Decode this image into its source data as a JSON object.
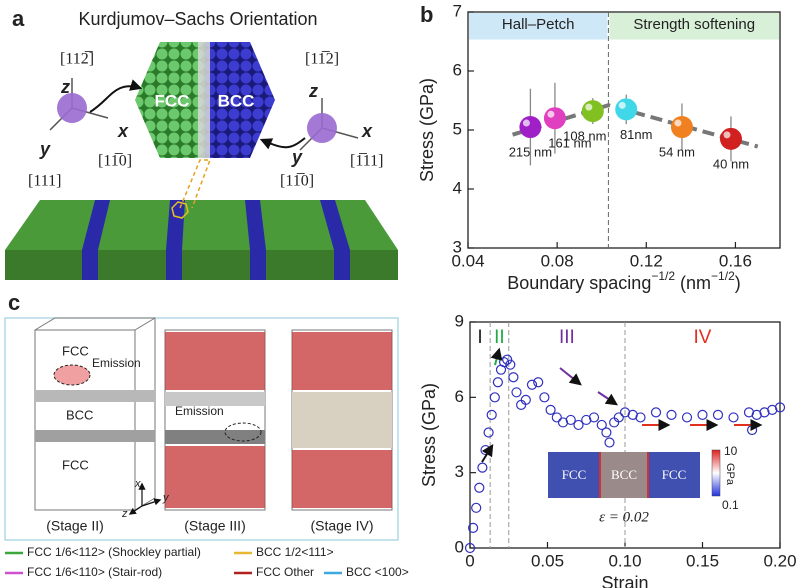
{
  "panel_labels": [
    "a",
    "b",
    "c"
  ],
  "panel_a": {
    "title": "Kurdjumov–Sachs Orientation",
    "phases": [
      "FCC",
      "BCC"
    ],
    "left_axes": {
      "z": "z",
      "x": "x",
      "y": "y",
      "z_dir": "[112̅]",
      "x_dir": "[11̅0]",
      "y_dir": "[111]"
    },
    "right_axes": {
      "z": "z",
      "x": "x",
      "y": "y",
      "z_dir": "[11̅2]",
      "x_dir": "[1̅11]",
      "y_dir": "[11̅0]"
    }
  },
  "panel_c_left": {
    "box_labels": [
      "FCC",
      "BCC",
      "FCC"
    ],
    "emission": [
      "Emission",
      "Emission"
    ],
    "triad": [
      "x",
      "y",
      "z"
    ],
    "stages": [
      "(Stage II)",
      "(Stage III)",
      "(Stage IV)"
    ],
    "legend": [
      {
        "label": "FCC 1/6<112> (Shockley partial)",
        "color": "#3aa83a"
      },
      {
        "label": "BCC 1/2<111>",
        "color": "#e8b830"
      },
      {
        "label": "FCC 1/6<110> (Stair-rod)",
        "color": "#d050d0"
      },
      {
        "label": "FCC Other",
        "color": "#b02020"
      },
      {
        "label": "BCC <100>",
        "color": "#40a8e0"
      }
    ]
  },
  "chart_data": [
    {
      "type": "scatter",
      "ylabel": "Stress (GPa)",
      "xlabel": [
        "Boundary spacing",
        "−1/2",
        " (nm",
        "−1/2",
        ")"
      ],
      "x": [
        0.068,
        0.079,
        0.096,
        0.111,
        0.136,
        0.158
      ],
      "values": [
        5.05,
        5.2,
        5.32,
        5.35,
        5.05,
        4.85
      ],
      "errors": [
        0.65,
        0.6,
        0.22,
        0.25,
        0.4,
        0.38
      ],
      "point_labels": [
        "215 nm",
        "161 nm",
        "108 nm",
        "81nm",
        "54 nm",
        "40 nm"
      ],
      "colors": [
        "#a020c8",
        "#e040c0",
        "#80c020",
        "#40d8e8",
        "#f08020",
        "#d02020"
      ],
      "trend": {
        "x": [
          0.06,
          0.103,
          0.17
        ],
        "values": [
          4.92,
          5.42,
          4.72
        ]
      },
      "regions": [
        {
          "label": "Hall–Petch",
          "x": [
            0.04,
            0.103
          ],
          "y": [
            6.55,
            7
          ],
          "color": "#cfe8f8"
        },
        {
          "label": "Strength softening",
          "x": [
            0.103,
            0.18
          ],
          "y": [
            6.55,
            7
          ],
          "color": "#d8f0d8"
        }
      ],
      "divider": 0.103,
      "xlim": [
        0.04,
        0.18
      ],
      "xticks": [
        0.04,
        0.08,
        0.12,
        0.16
      ],
      "ylim": [
        3,
        7
      ],
      "yticks": [
        3,
        4,
        5,
        6,
        7
      ]
    },
    {
      "type": "line",
      "ylabel": "Stress (GPa)",
      "xlabel": [
        "Strain"
      ],
      "color": "#3030c0",
      "x": [
        0,
        0.002,
        0.004,
        0.006,
        0.008,
        0.01,
        0.012,
        0.014,
        0.016,
        0.018,
        0.02,
        0.022,
        0.024,
        0.026,
        0.028,
        0.03,
        0.033,
        0.036,
        0.04,
        0.044,
        0.048,
        0.052,
        0.056,
        0.06,
        0.065,
        0.07,
        0.075,
        0.08,
        0.085,
        0.088,
        0.09,
        0.093,
        0.096,
        0.1,
        0.105,
        0.11,
        0.12,
        0.13,
        0.14,
        0.15,
        0.16,
        0.17,
        0.18,
        0.182,
        0.185,
        0.19,
        0.195,
        0.2
      ],
      "values": [
        0,
        0.8,
        1.6,
        2.4,
        3.2,
        3.9,
        4.6,
        5.3,
        6.0,
        6.6,
        7.1,
        7.4,
        7.5,
        7.3,
        6.8,
        6.2,
        5.7,
        5.9,
        6.5,
        6.6,
        6.0,
        5.5,
        5.2,
        5.0,
        5.1,
        4.9,
        5.1,
        5.2,
        4.9,
        4.6,
        4.2,
        5.0,
        5.2,
        5.4,
        5.3,
        5.2,
        5.4,
        5.3,
        5.2,
        5.3,
        5.3,
        5.2,
        5.4,
        4.7,
        5.3,
        5.4,
        5.5,
        5.6
      ],
      "stages": [
        {
          "label": "I",
          "color": "#222222"
        },
        {
          "label": "II",
          "color": "#22aa44"
        },
        {
          "label": "III",
          "color": "#7030a0"
        },
        {
          "label": "IV",
          "color": "#e03020"
        }
      ],
      "boundaries": [
        0.013,
        0.025,
        0.1
      ],
      "inset": {
        "labels": [
          "FCC",
          "BCC",
          "FCC"
        ],
        "colorbar": [
          "10",
          "GPa",
          "0.1"
        ],
        "strain": "ε = 0.02"
      },
      "xlim": [
        0,
        0.2
      ],
      "xticks": [
        0,
        0.05,
        {
          "value": 0.1,
          "label": "0.10"
        },
        0.15,
        {
          "value": 0.2,
          "label": "0.20"
        }
      ],
      "ylim": [
        0,
        9
      ],
      "yticks": [
        0,
        3,
        6,
        9
      ]
    }
  ]
}
